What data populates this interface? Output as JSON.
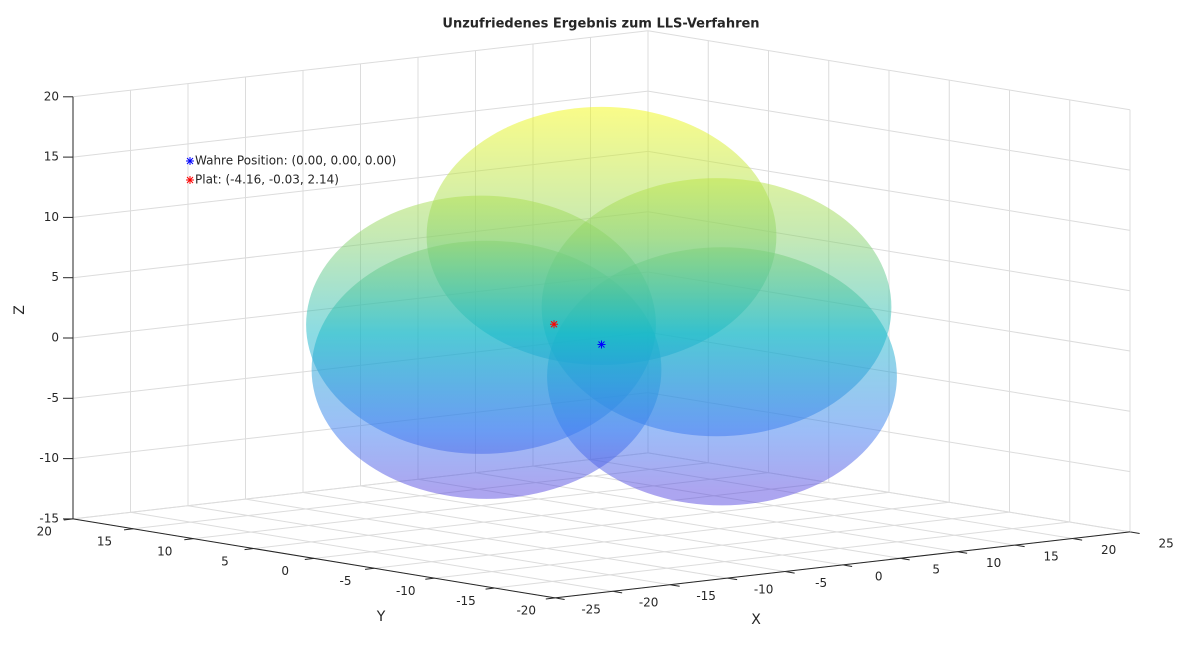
{
  "chart_data": {
    "type": "scatter3d",
    "title": "Unzufriedenes Ergebnis zum LLS-Verfahren",
    "xlabel": "X",
    "ylabel": "Y",
    "zlabel": "Z",
    "xlim": [
      -25,
      25
    ],
    "ylim": [
      -20,
      20
    ],
    "zlim": [
      -15,
      20
    ],
    "xticks": [
      -25,
      -20,
      -15,
      -10,
      -5,
      0,
      5,
      10,
      15,
      20,
      25
    ],
    "yticks": [
      -20,
      -15,
      -10,
      -5,
      0,
      5,
      10,
      15,
      20
    ],
    "zticks": [
      -15,
      -10,
      -5,
      0,
      5,
      10,
      15,
      20
    ],
    "grid": true,
    "legend": "northwest",
    "series": [
      {
        "name": "Wahre Position: (0.00, 0.00, 0.00)",
        "color": "#0000ff",
        "x": [
          0
        ],
        "y": [
          0
        ],
        "z": [
          0
        ]
      },
      {
        "name": "Plat: (-4.16, -0.03, 2.14)",
        "color": "#ff0000",
        "x": [
          -4.16
        ],
        "y": [
          -0.03
        ],
        "z": [
          2.14
        ]
      }
    ],
    "spheres": {
      "x": [
        0,
        0,
        -10,
        10,
        0
      ],
      "y": [
        0,
        10,
        0,
        0,
        -10
      ],
      "z": [
        9,
        0,
        -1,
        2,
        -1
      ],
      "r": [
        10.5,
        10.5,
        10.5,
        10.5,
        10.5
      ]
    }
  }
}
